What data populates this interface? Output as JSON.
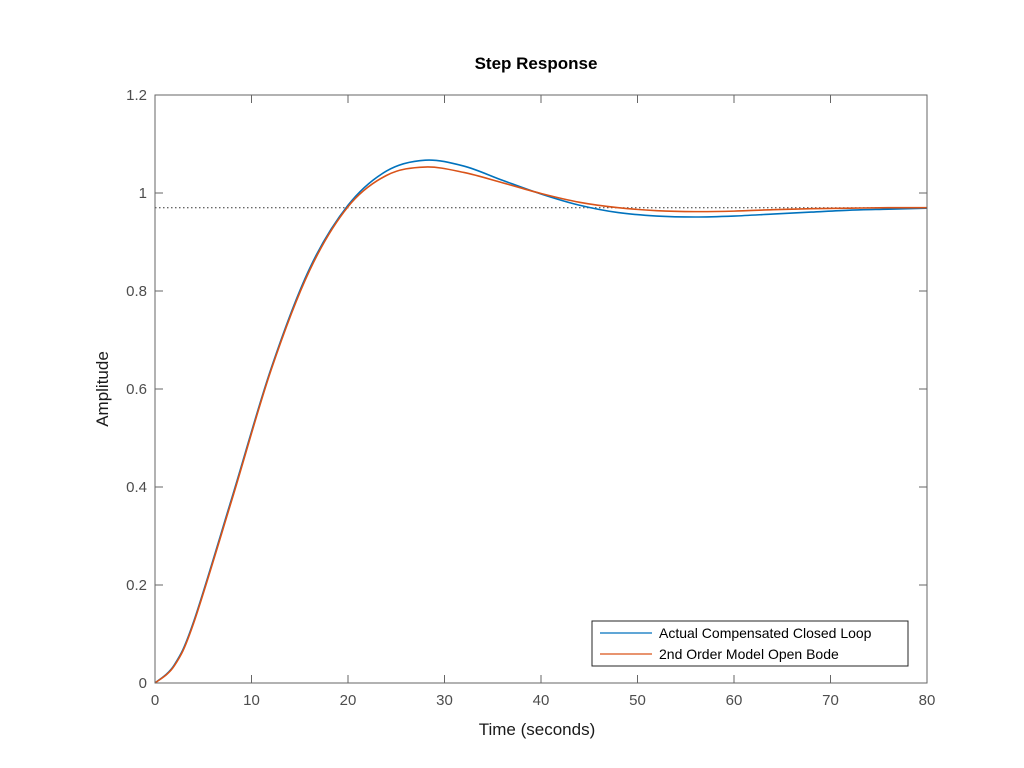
{
  "chart_data": {
    "type": "line",
    "title": "Step Response",
    "xlabel": "Time (seconds)",
    "ylabel": "Amplitude",
    "xlim": [
      0,
      80
    ],
    "ylim": [
      0,
      1.2
    ],
    "xticks": [
      0,
      10,
      20,
      30,
      40,
      50,
      60,
      70,
      80
    ],
    "xtick_labels": [
      "0",
      "10",
      "20",
      "30",
      "40",
      "50",
      "60",
      "70",
      "80"
    ],
    "yticks": [
      0,
      0.2,
      0.4,
      0.6,
      0.8,
      1.0,
      1.2
    ],
    "ytick_labels": [
      "0",
      "0.2",
      "0.4",
      "0.6",
      "0.8",
      "1",
      "1.2"
    ],
    "grid": false,
    "legend_position": "bottom-right",
    "steady_state_reference": 0.97,
    "x": [
      0,
      2,
      4,
      8,
      12,
      16,
      20,
      24,
      28,
      32,
      36,
      40,
      44,
      48,
      52,
      56,
      60,
      64,
      68,
      72,
      76,
      80
    ],
    "series": [
      {
        "name": "Actual Compensated Closed Loop",
        "color": "#0072BD",
        "values": [
          0,
          0.037,
          0.125,
          0.38,
          0.64,
          0.845,
          0.975,
          1.045,
          1.067,
          1.055,
          1.026,
          0.998,
          0.975,
          0.96,
          0.953,
          0.951,
          0.953,
          0.957,
          0.961,
          0.965,
          0.967,
          0.969
        ]
      },
      {
        "name": "2nd Order Model Open Bode",
        "color": "#D95319",
        "values": [
          0,
          0.035,
          0.122,
          0.376,
          0.637,
          0.841,
          0.972,
          1.036,
          1.053,
          1.042,
          1.021,
          0.999,
          0.981,
          0.97,
          0.964,
          0.962,
          0.963,
          0.966,
          0.968,
          0.969,
          0.97,
          0.97
        ]
      }
    ]
  }
}
